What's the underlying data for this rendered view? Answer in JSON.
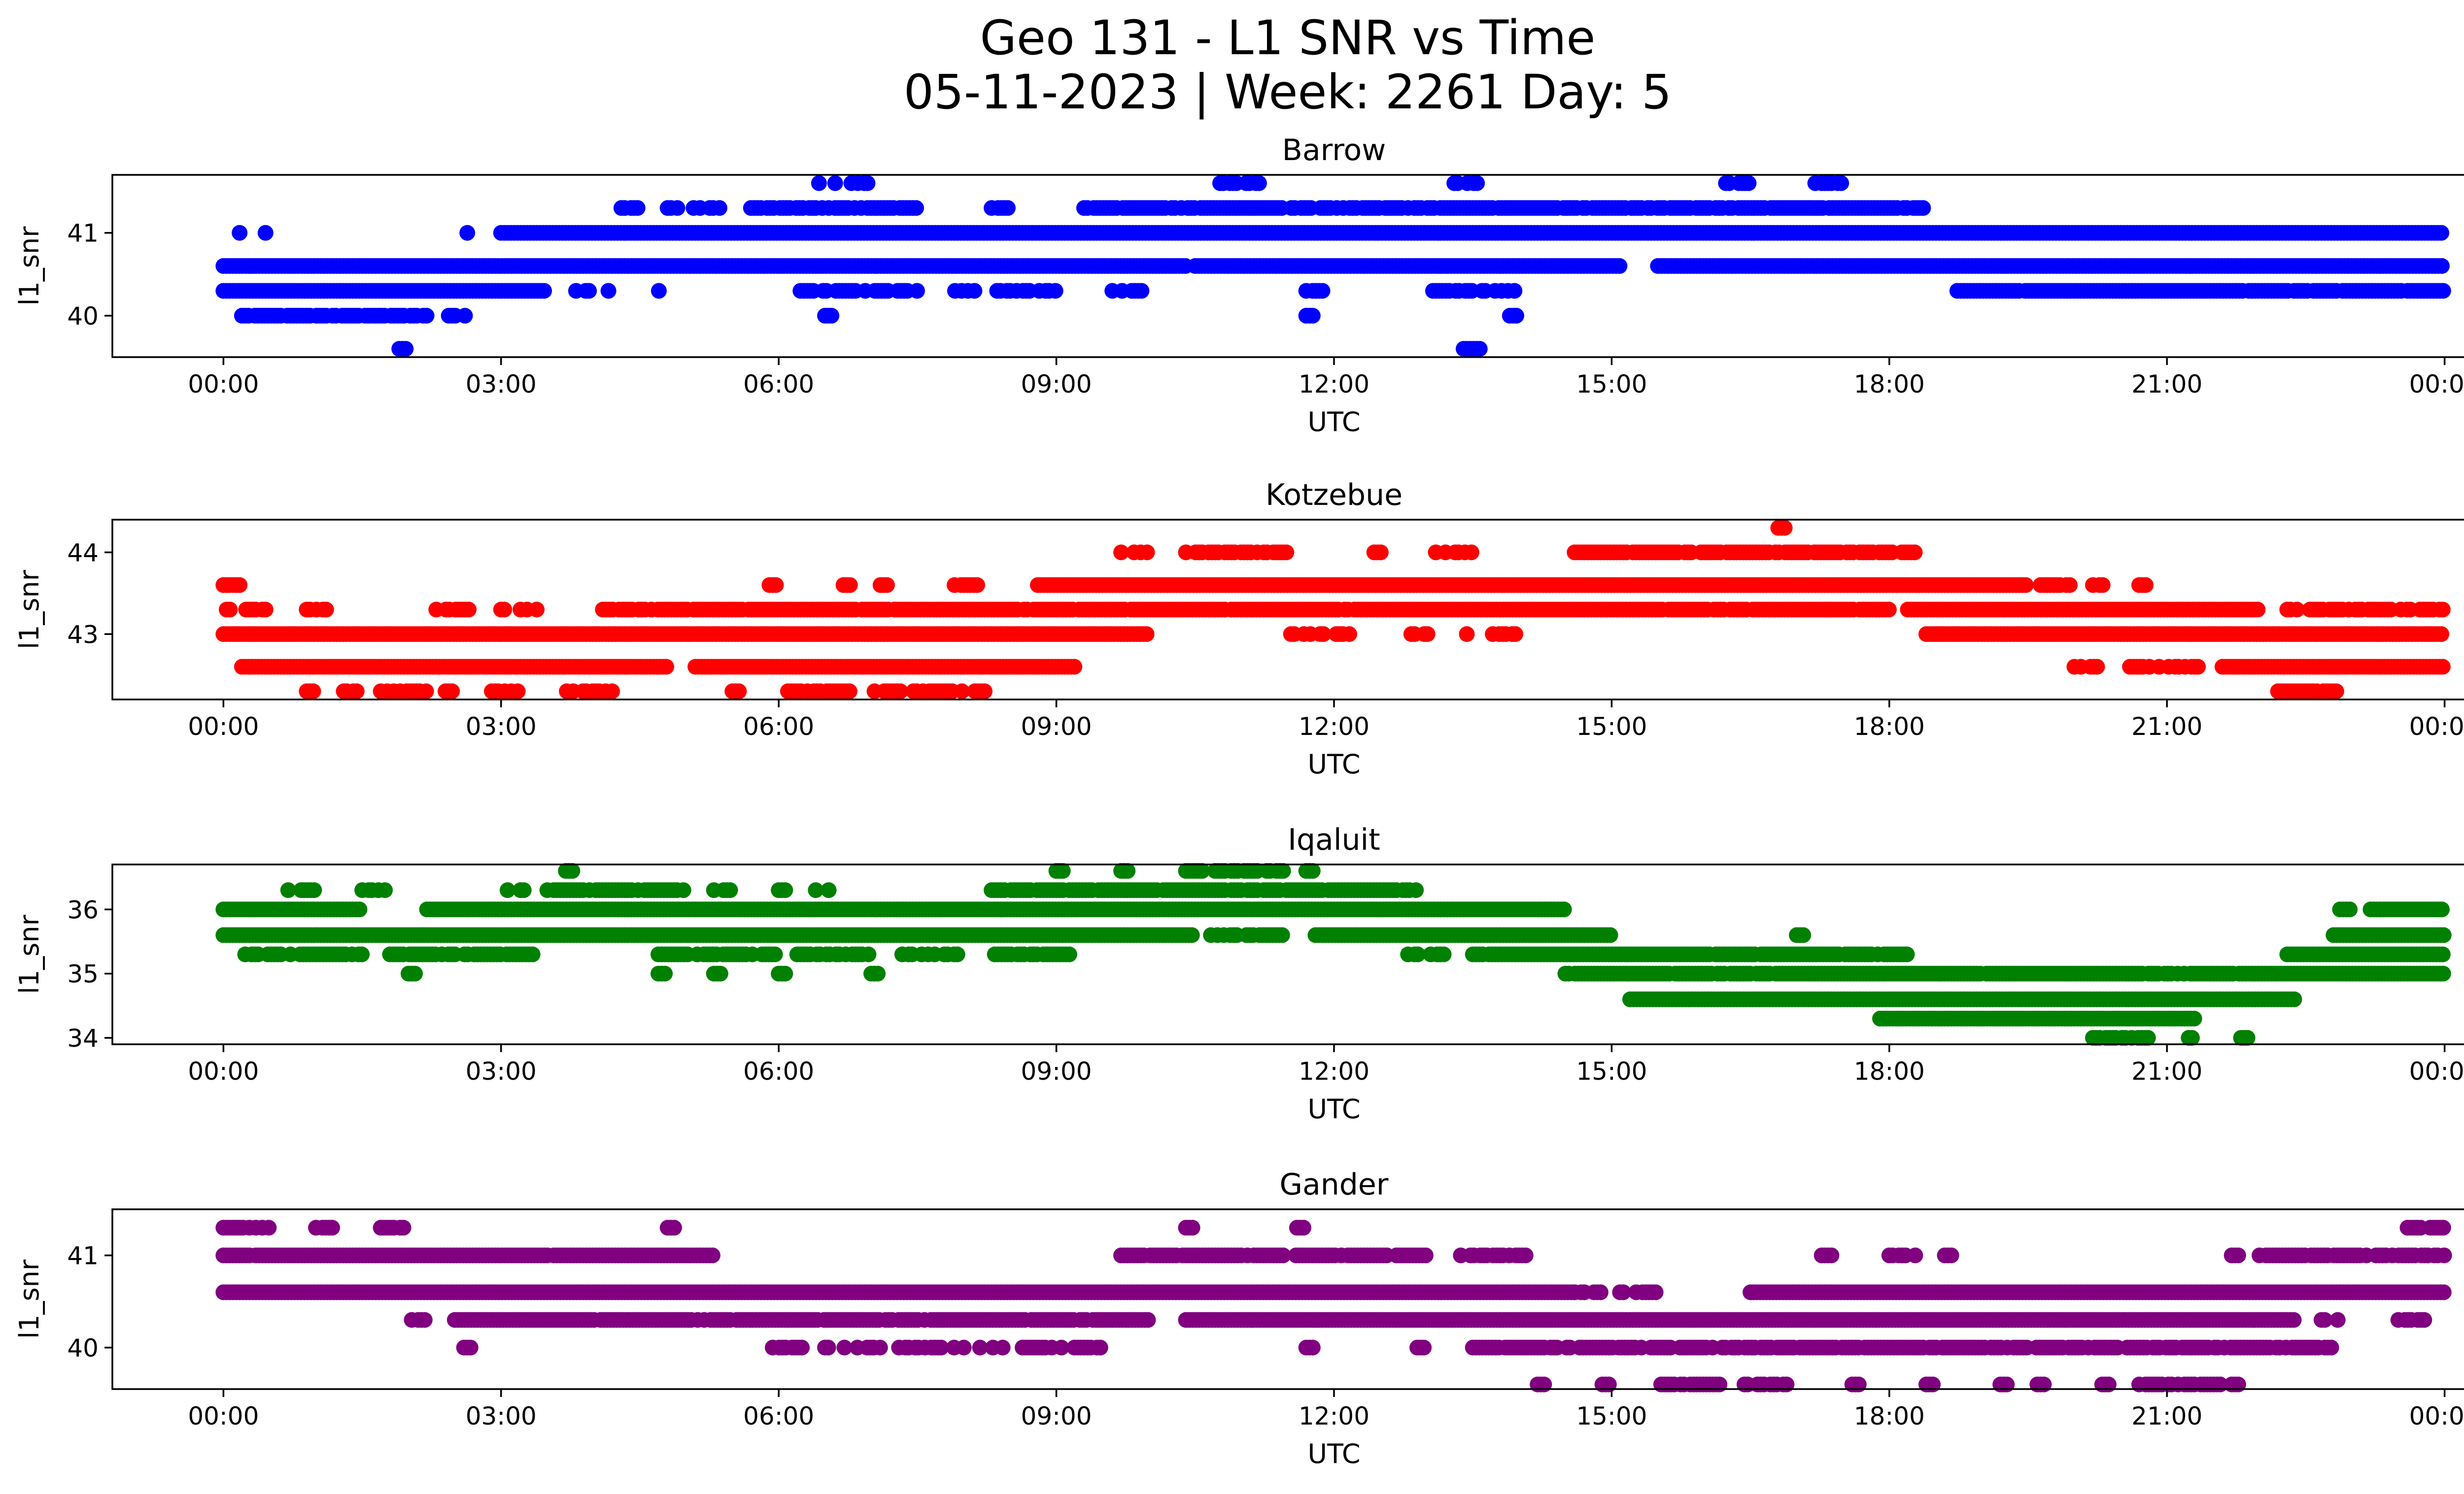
{
  "figure": {
    "title_line1": "Geo 131 - L1 SNR vs Time",
    "title_line2": "05-11-2023 | Week: 2261 Day: 5"
  },
  "chart_data": [
    {
      "type": "scatter",
      "title": "Barrow",
      "xlabel": "UTC",
      "ylabel": "l1_snr",
      "color": "#0000ff",
      "x_ticks": [
        "00:00",
        "03:00",
        "06:00",
        "09:00",
        "12:00",
        "15:00",
        "18:00",
        "21:00",
        "00:00"
      ],
      "xlim_hours": [
        -1.2,
        25.2
      ],
      "ylim": [
        39.5,
        41.7
      ],
      "y_ticks": [
        40,
        41
      ],
      "series": [
        {
          "x_hours": [
            0.0,
            0.2,
            0.4,
            0.6,
            0.8,
            1.0,
            1.2,
            1.4,
            1.6,
            1.8,
            2.0,
            2.2,
            2.4,
            2.6,
            2.8,
            3.0,
            3.5,
            4.0,
            4.5,
            5.0,
            5.5,
            6.0,
            6.5,
            7.0,
            7.5,
            8.0,
            8.5,
            9.0,
            9.5,
            10.0,
            10.5,
            11.0,
            11.5,
            12.0,
            12.5,
            13.0,
            13.5,
            14.0,
            14.5,
            15.0,
            15.5,
            16.0,
            16.5,
            17.0,
            17.5,
            18.0,
            18.5,
            19.0,
            19.5,
            20.0,
            20.5,
            21.0,
            21.5,
            22.0,
            22.5,
            23.0,
            23.5,
            24.0
          ],
          "y_band_levels": [
            39.6,
            40.0,
            40.3,
            40.6,
            41.0,
            41.3,
            41.6
          ]
        }
      ]
    },
    {
      "type": "scatter",
      "title": "Kotzebue",
      "xlabel": "UTC",
      "ylabel": "l1_snr",
      "color": "#ff0000",
      "x_ticks": [
        "00:00",
        "03:00",
        "06:00",
        "09:00",
        "12:00",
        "15:00",
        "18:00",
        "21:00",
        "00:00"
      ],
      "xlim_hours": [
        -1.2,
        25.2
      ],
      "ylim": [
        42.2,
        44.4
      ],
      "y_ticks": [
        43,
        44
      ],
      "y_band_levels": [
        42.3,
        42.6,
        43.0,
        43.3,
        43.6,
        44.0,
        44.3
      ]
    },
    {
      "type": "scatter",
      "title": "Iqaluit",
      "xlabel": "UTC",
      "ylabel": "l1_snr",
      "color": "#008000",
      "x_ticks": [
        "00:00",
        "03:00",
        "06:00",
        "09:00",
        "12:00",
        "15:00",
        "18:00",
        "21:00",
        "00:00"
      ],
      "xlim_hours": [
        -1.2,
        25.2
      ],
      "ylim": [
        33.9,
        36.7
      ],
      "y_ticks": [
        34,
        35,
        36
      ],
      "y_band_levels": [
        34.0,
        34.3,
        34.6,
        35.0,
        35.3,
        35.6,
        36.0,
        36.3,
        36.6
      ]
    },
    {
      "type": "scatter",
      "title": "Gander",
      "xlabel": "UTC",
      "ylabel": "l1_snr",
      "color": "#800080",
      "x_ticks": [
        "00:00",
        "03:00",
        "06:00",
        "09:00",
        "12:00",
        "15:00",
        "18:00",
        "21:00",
        "00:00"
      ],
      "xlim_hours": [
        -1.2,
        25.2
      ],
      "ylim": [
        39.55,
        41.5
      ],
      "y_ticks": [
        40,
        41
      ],
      "y_band_levels": [
        39.6,
        40.0,
        40.3,
        40.6,
        41.0,
        41.3
      ]
    }
  ]
}
